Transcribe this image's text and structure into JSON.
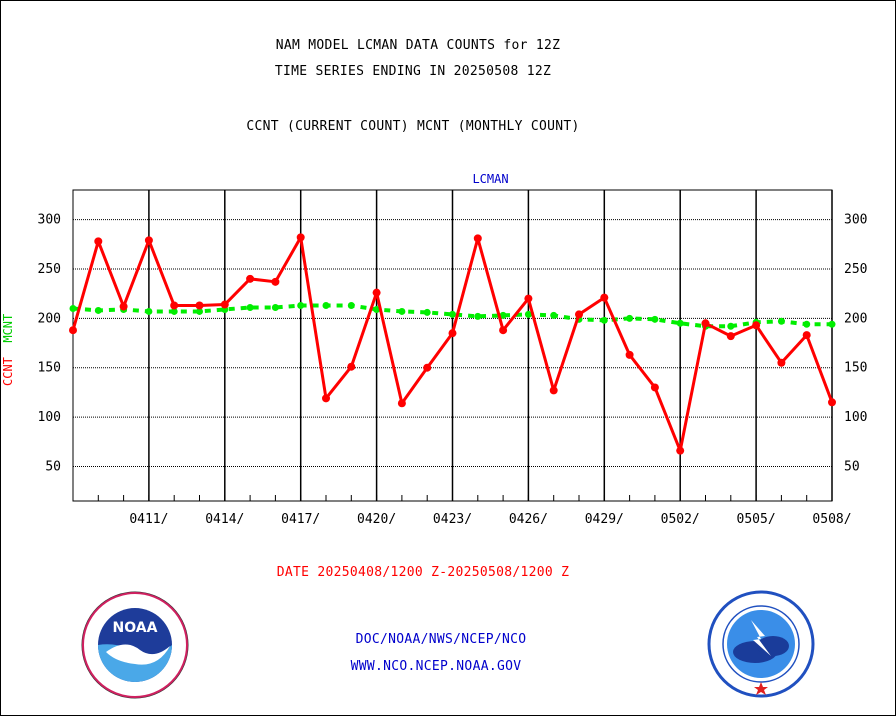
{
  "header": {
    "title_line1": "NAM MODEL LCMAN DATA COUNTS for 12Z",
    "title_line2": "TIME SERIES ENDING IN 20250508 12Z",
    "subtitle": "CCNT (CURRENT COUNT) MCNT (MONTHLY COUNT)"
  },
  "chart_data": {
    "type": "line",
    "title": "LCMAN",
    "ylabel_parts": [
      "CCNT",
      "MCNT"
    ],
    "ylim": [
      15,
      330
    ],
    "yticks": [
      50,
      100,
      150,
      200,
      250,
      300
    ],
    "x_start": "0408",
    "x_end": "0508",
    "xticks": [
      "0411/",
      "0414/",
      "0417/",
      "0420/",
      "0423/",
      "0426/",
      "0429/",
      "0502/",
      "0505/",
      "0508/"
    ],
    "date_range_label": "DATE 20250408/1200 Z-20250508/1200 Z",
    "grid": true,
    "series": [
      {
        "name": "CCNT",
        "color": "#ff0000",
        "style": "solid",
        "values": [
          188,
          278,
          212,
          279,
          213,
          213,
          214,
          240,
          237,
          282,
          119,
          151,
          226,
          114,
          150,
          185,
          281,
          188,
          220,
          127,
          204,
          221,
          163,
          130,
          66,
          195,
          182,
          193,
          155,
          183,
          115
        ]
      },
      {
        "name": "MCNT",
        "color": "#00ee00",
        "style": "dashed",
        "values": [
          210,
          208,
          209,
          207,
          207,
          207,
          209,
          211,
          211,
          213,
          213,
          213,
          209,
          207,
          206,
          204,
          202,
          203,
          204,
          203,
          199,
          198,
          200,
          199,
          195,
          192,
          192,
          196,
          197,
          194,
          194
        ]
      }
    ]
  },
  "footer": {
    "link1": "DOC/NOAA/NWS/NCEP/NCO",
    "link2": "WWW.NCO.NCEP.NOAA.GOV"
  },
  "logos": {
    "noaa": {
      "icon": "noaa-logo",
      "text": "NOAA",
      "ring_text": "NATIONAL OCEANIC AND ATMOSPHERIC ADMINISTRATION · U.S. DEPARTMENT OF COMMERCE"
    },
    "nws": {
      "icon": "nws-logo",
      "ring_text": "NATIONAL WEATHER SERVICE"
    }
  },
  "colors": {
    "text": "#000000",
    "label_red": "#ff0000",
    "label_green": "#00cc00",
    "link_blue": "#0000cc"
  }
}
